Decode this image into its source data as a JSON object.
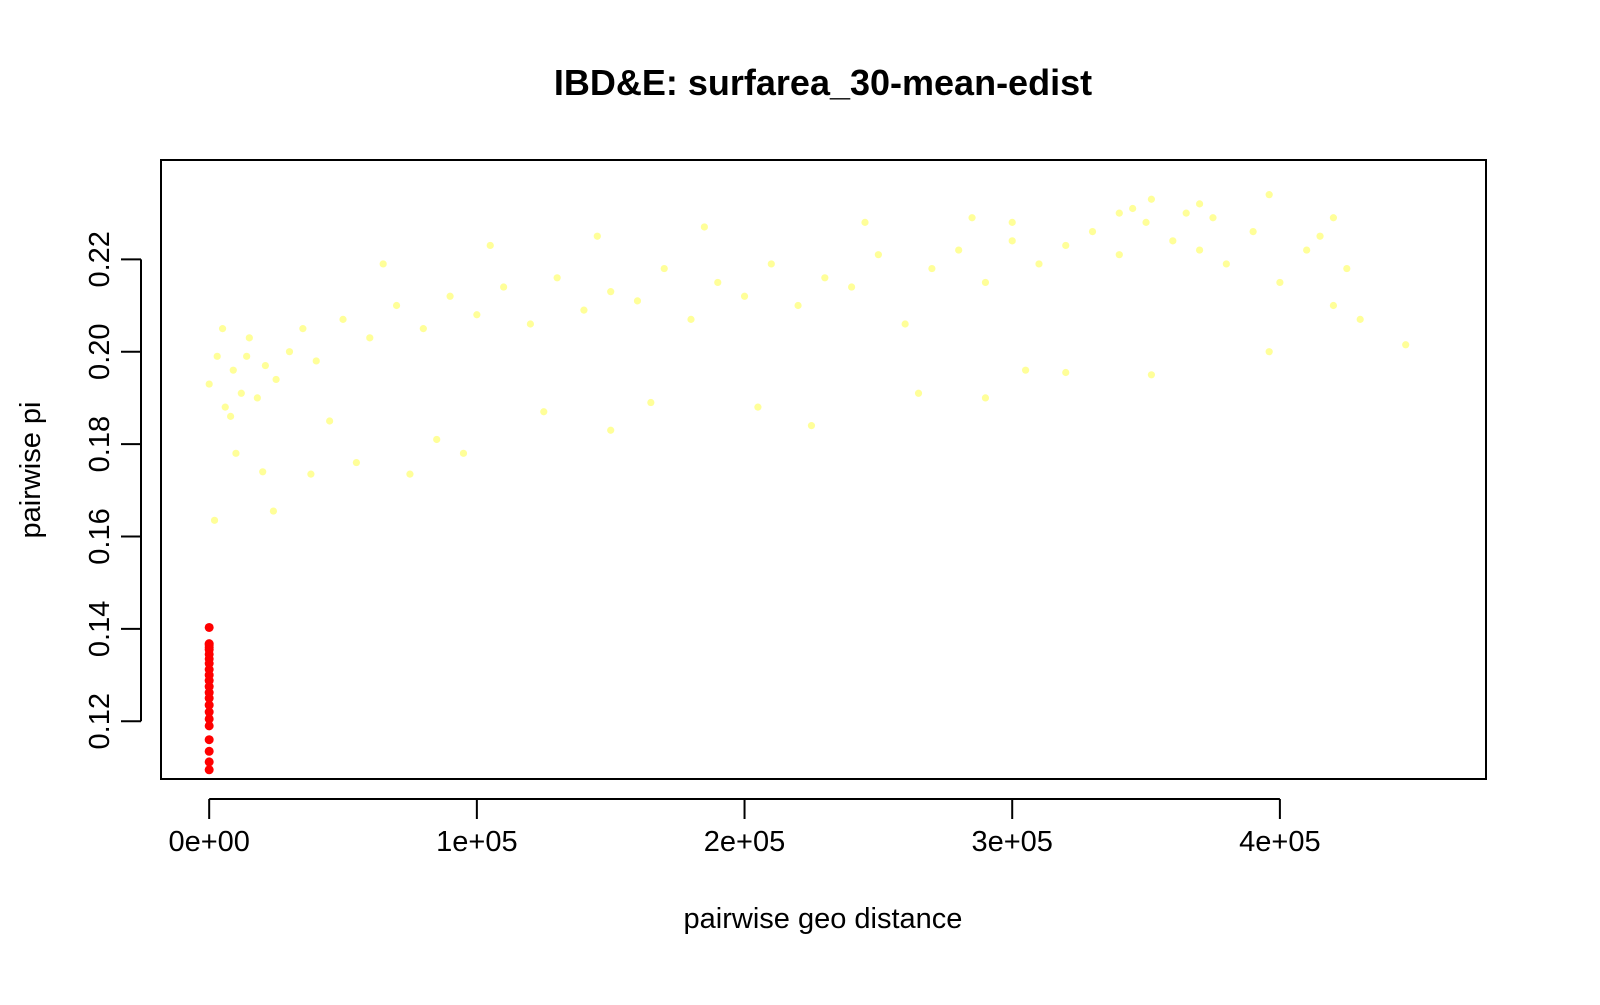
{
  "chart_data": {
    "type": "scatter",
    "title": "IBD&E: surfarea_30-mean-edist",
    "xlabel": "pairwise geo distance",
    "ylabel": "pairwise pi",
    "xlim": [
      -18000,
      477000
    ],
    "ylim": [
      0.1075,
      0.2415
    ],
    "x_ticks": [
      0,
      100000,
      200000,
      300000,
      400000
    ],
    "x_tick_labels": [
      "0e+00",
      "1e+05",
      "2e+05",
      "3e+05",
      "4e+05"
    ],
    "y_ticks": [
      0.12,
      0.14,
      0.16,
      0.18,
      0.2,
      0.22
    ],
    "y_tick_labels": [
      "0.12",
      "0.14",
      "0.16",
      "0.18",
      "0.20",
      "0.22"
    ],
    "grid": false,
    "legend": "none",
    "colors": {
      "main_series": "#FFFF99",
      "highlight_series": "#FF0000",
      "axis": "#000000"
    },
    "series": [
      {
        "color": "#FFFF99",
        "x": [
          0,
          3000,
          6000,
          9000,
          12000,
          15000,
          18000,
          21000,
          25000,
          30000,
          35000,
          40000,
          50000,
          60000,
          70000,
          80000,
          90000,
          100000,
          110000,
          120000,
          130000,
          140000,
          150000,
          160000,
          170000,
          180000,
          190000,
          200000,
          210000,
          220000,
          230000,
          240000,
          250000,
          260000,
          270000,
          280000,
          290000,
          300000,
          310000,
          320000,
          330000,
          340000,
          350000,
          360000,
          370000,
          380000,
          390000,
          400000,
          410000,
          420000,
          430000,
          447000,
          2000,
          10000,
          20000,
          24000,
          38000,
          55000,
          75000,
          95000,
          150000,
          225000,
          290000,
          320000,
          352000,
          396000,
          5000,
          8000,
          14000,
          45000,
          65000,
          85000,
          105000,
          125000,
          145000,
          165000,
          185000,
          205000,
          245000,
          265000,
          285000,
          305000,
          345000,
          365000,
          375000,
          415000,
          425000,
          300000,
          340000,
          352000,
          370000,
          396000,
          420000
        ],
        "y": [
          0.193,
          0.199,
          0.188,
          0.196,
          0.191,
          0.203,
          0.19,
          0.197,
          0.194,
          0.2,
          0.205,
          0.198,
          0.207,
          0.203,
          0.21,
          0.205,
          0.212,
          0.208,
          0.214,
          0.206,
          0.216,
          0.209,
          0.213,
          0.211,
          0.218,
          0.207,
          0.215,
          0.212,
          0.219,
          0.21,
          0.216,
          0.214,
          0.221,
          0.206,
          0.218,
          0.222,
          0.215,
          0.224,
          0.219,
          0.223,
          0.226,
          0.221,
          0.228,
          0.224,
          0.222,
          0.219,
          0.226,
          0.215,
          0.222,
          0.21,
          0.207,
          0.2015,
          0.1635,
          0.178,
          0.174,
          0.1655,
          0.1735,
          0.176,
          0.1735,
          0.178,
          0.183,
          0.184,
          0.19,
          0.1955,
          0.195,
          0.2,
          0.205,
          0.186,
          0.199,
          0.185,
          0.219,
          0.181,
          0.223,
          0.187,
          0.225,
          0.189,
          0.227,
          0.188,
          0.228,
          0.191,
          0.229,
          0.196,
          0.231,
          0.23,
          0.229,
          0.225,
          0.218,
          0.228,
          0.23,
          0.233,
          0.232,
          0.234,
          0.229
        ]
      },
      {
        "color": "#FF0000",
        "x": [
          0,
          0,
          0,
          0,
          0,
          0,
          0,
          0,
          0,
          0,
          0,
          0,
          0,
          0,
          0,
          0,
          0,
          0,
          0,
          0,
          0,
          0
        ],
        "y": [
          0.1095,
          0.1112,
          0.1135,
          0.116,
          0.119,
          0.1205,
          0.122,
          0.1235,
          0.125,
          0.1262,
          0.1275,
          0.1288,
          0.13,
          0.1312,
          0.1325,
          0.1335,
          0.1345,
          0.1355,
          0.136,
          0.1365,
          0.1368,
          0.1403
        ]
      }
    ]
  }
}
